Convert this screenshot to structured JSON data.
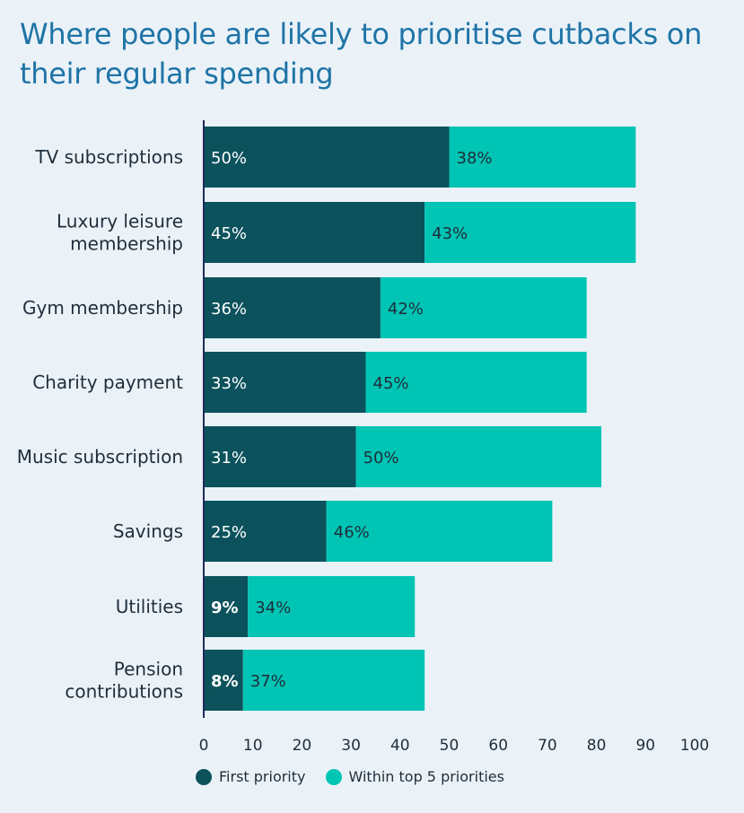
{
  "chart_data": {
    "type": "bar",
    "orientation": "horizontal",
    "stacked": true,
    "title": "Where people are likely to prioritise cutbacks on their regular spending",
    "categories": [
      [
        "TV subscriptions"
      ],
      [
        "Luxury leisure",
        "membership"
      ],
      [
        "Gym membership"
      ],
      [
        "Charity payment"
      ],
      [
        "Music subscription"
      ],
      [
        "Savings"
      ],
      [
        "Utilities"
      ],
      [
        "Pension",
        "contributions"
      ]
    ],
    "series": [
      {
        "name": "First priority",
        "color": "#0c525c",
        "values": [
          50,
          45,
          36,
          33,
          31,
          25,
          9,
          8
        ],
        "labels": [
          "50%",
          "45%",
          "36%",
          "33%",
          "31%",
          "25%",
          "9%",
          "8%"
        ]
      },
      {
        "name": "Within top 5 priorities",
        "color": "#00c4b4",
        "values": [
          38,
          43,
          42,
          45,
          50,
          46,
          34,
          37
        ],
        "labels": [
          "38%",
          "43%",
          "42%",
          "45%",
          "50%",
          "46%",
          "34%",
          "37%"
        ]
      }
    ],
    "xlim": [
      0,
      100
    ],
    "xticks": [
      0,
      10,
      20,
      30,
      40,
      50,
      60,
      70,
      80,
      90,
      100
    ],
    "grid": false,
    "legend_position": "bottom"
  }
}
